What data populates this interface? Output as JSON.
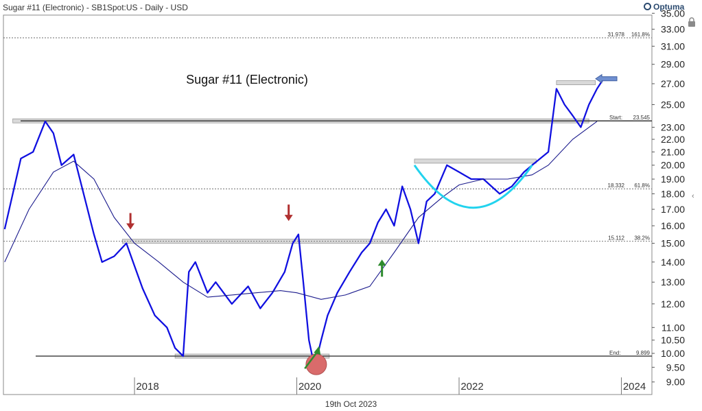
{
  "header": {
    "title": "Sugar #11 (Electronic) - SB1Spot:US - Daily - USD",
    "logo_text": "Optuma"
  },
  "footer": {
    "date": "19th Oct 2023"
  },
  "icons": {
    "lock": "lock-icon",
    "collapse": "chevron-left-icon"
  },
  "colors": {
    "price_line": "#1010e0",
    "moving_average": "#1a1a8c",
    "arc": "#22d3ee",
    "up_arrow": "#2e8b2e",
    "down_arrow": "#b03030",
    "low_marker": "#d96b6b",
    "zone_fill": "#d9d9d9",
    "gridline": "#555555"
  },
  "chart_data": {
    "type": "line",
    "title": "Sugar #11 (Electronic)",
    "x_axis": {
      "ticks": [
        "2018",
        "2020",
        "2022",
        "2024"
      ]
    },
    "y_axis": {
      "scale": "log",
      "ticks": [
        "35.00",
        "33.00",
        "31.00",
        "29.00",
        "27.00",
        "25.00",
        "23.00",
        "22.00",
        "21.00",
        "20.00",
        "19.00",
        "18.00",
        "17.00",
        "16.00",
        "15.00",
        "14.00",
        "13.00",
        "12.00",
        "11.00",
        "10.50",
        "10.00",
        "9.50",
        "9.00"
      ]
    },
    "series": [
      {
        "kind": "price",
        "x": [
          2016.4,
          2016.6,
          2016.75,
          2016.9,
          2017.0,
          2017.1,
          2017.25,
          2017.35,
          2017.5,
          2017.6,
          2017.75,
          2017.9,
          2018.0,
          2018.1,
          2018.25,
          2018.4,
          2018.5,
          2018.6,
          2018.67,
          2018.75,
          2018.9,
          2019.0,
          2019.2,
          2019.4,
          2019.55,
          2019.7,
          2019.85,
          2019.95,
          2020.02,
          2020.08,
          2020.15,
          2020.22,
          2020.3,
          2020.38,
          2020.5,
          2020.65,
          2020.8,
          2020.9,
          2021.0,
          2021.1,
          2021.2,
          2021.3,
          2021.4,
          2021.5,
          2021.6,
          2021.7,
          2021.85,
          2022.0,
          2022.15,
          2022.3,
          2022.5,
          2022.65,
          2022.8,
          2022.9,
          2023.0,
          2023.1,
          2023.2,
          2023.3,
          2023.4,
          2023.5,
          2023.6,
          2023.7,
          2023.78
        ],
        "y": [
          15.8,
          20.5,
          21.0,
          23.5,
          22.5,
          20.0,
          20.8,
          18.5,
          15.5,
          14.0,
          14.3,
          15.0,
          13.8,
          12.7,
          11.5,
          11.0,
          10.2,
          9.9,
          13.5,
          14.0,
          12.5,
          13.0,
          12.0,
          12.8,
          11.8,
          12.5,
          13.5,
          15.0,
          15.5,
          13.0,
          10.5,
          9.5,
          10.5,
          11.5,
          12.5,
          13.5,
          14.5,
          15.0,
          16.2,
          17.0,
          16.0,
          18.5,
          17.0,
          15.0,
          17.5,
          18.0,
          20.0,
          19.5,
          19.0,
          19.0,
          18.0,
          18.5,
          19.5,
          20.0,
          20.5,
          21.0,
          26.5,
          25.0,
          24.0,
          23.0,
          25.0,
          26.5,
          27.5
        ]
      },
      {
        "kind": "moving-average",
        "x": [
          2016.4,
          2016.7,
          2017.0,
          2017.25,
          2017.5,
          2017.75,
          2018.0,
          2018.3,
          2018.6,
          2018.9,
          2019.2,
          2019.5,
          2019.8,
          2020.0,
          2020.3,
          2020.6,
          2020.9,
          2021.2,
          2021.5,
          2021.8,
          2022.0,
          2022.3,
          2022.6,
          2022.9,
          2023.1,
          2023.4,
          2023.7
        ],
        "y": [
          14.0,
          17.0,
          19.5,
          20.3,
          19.0,
          16.5,
          15.0,
          14.0,
          13.0,
          12.3,
          12.4,
          12.5,
          12.6,
          12.5,
          12.2,
          12.4,
          12.8,
          14.5,
          16.5,
          17.8,
          18.6,
          19.0,
          19.0,
          19.3,
          20.0,
          22.0,
          23.5
        ]
      }
    ],
    "annotations": {
      "fib_levels": [
        {
          "value": 31.978,
          "label": "31.978",
          "pct": "161.8%"
        },
        {
          "value": 18.332,
          "label": "18.332",
          "pct": "61.8%"
        },
        {
          "value": 15.112,
          "label": "15.112",
          "pct": "38.2%"
        }
      ],
      "start": {
        "label": "Start:",
        "value": "23.545"
      },
      "end": {
        "label": "End:",
        "value": "9.899"
      },
      "zones": [
        {
          "x0": 2016.5,
          "x1": 2023.6,
          "y": 23.545
        },
        {
          "x0": 2017.85,
          "x1": 2021.5,
          "y": 15.112
        },
        {
          "x0": 2018.5,
          "x1": 2020.4,
          "y": 9.899
        },
        {
          "x0": 2021.45,
          "x1": 2022.95,
          "y": 20.3
        },
        {
          "x0": 2023.2,
          "x1": 2023.68,
          "y": 27.1
        }
      ],
      "down_arrows": [
        {
          "x": 2017.95,
          "y": 15.7
        },
        {
          "x": 2019.9,
          "y": 16.2
        }
      ],
      "up_arrows": [
        {
          "x": 2021.05,
          "y": 14.2
        },
        {
          "x": 2020.2,
          "y": 10.2
        }
      ],
      "low_marker": {
        "x": 2020.24,
        "y": 9.6
      },
      "arc": {
        "x0": 2021.45,
        "x1": 2022.9,
        "top": 20.0,
        "bottom": 17.1
      }
    }
  }
}
